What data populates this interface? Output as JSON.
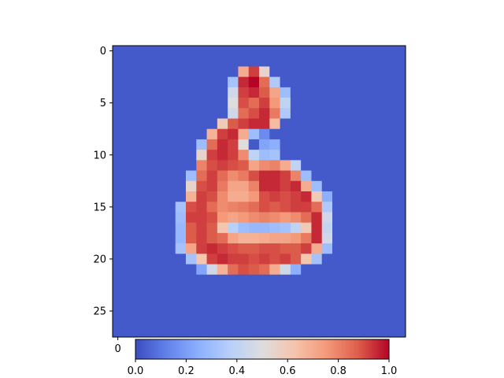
{
  "chart_data": {
    "type": "heatmap",
    "title": "",
    "xlabel": "",
    "ylabel": "",
    "colormap": "coolwarm",
    "rows": 28,
    "cols": 28,
    "x_ticks": [
      "0"
    ],
    "y_ticks": [
      "0",
      "5",
      "10",
      "15",
      "20",
      "25"
    ],
    "colorbar": {
      "orientation": "horizontal",
      "placement": "bottom",
      "range": [
        0,
        1
      ],
      "ticks": [
        "0.0",
        "0.2",
        "0.4",
        "0.6",
        "0.8",
        "1.0"
      ]
    },
    "cells": [
      {
        "r": 2,
        "c": 12,
        "v": 0.7
      },
      {
        "r": 2,
        "c": 13,
        "v": 0.92
      },
      {
        "r": 2,
        "c": 14,
        "v": 0.55
      },
      {
        "r": 3,
        "c": 11,
        "v": 0.32
      },
      {
        "r": 3,
        "c": 12,
        "v": 0.95
      },
      {
        "r": 3,
        "c": 13,
        "v": 1.0
      },
      {
        "r": 3,
        "c": 14,
        "v": 0.85
      },
      {
        "r": 3,
        "c": 15,
        "v": 0.35
      },
      {
        "r": 4,
        "c": 11,
        "v": 0.45
      },
      {
        "r": 4,
        "c": 12,
        "v": 0.92
      },
      {
        "r": 4,
        "c": 13,
        "v": 0.95
      },
      {
        "r": 4,
        "c": 14,
        "v": 0.88
      },
      {
        "r": 4,
        "c": 15,
        "v": 0.72
      },
      {
        "r": 4,
        "c": 16,
        "v": 0.3
      },
      {
        "r": 5,
        "c": 11,
        "v": 0.5
      },
      {
        "r": 5,
        "c": 12,
        "v": 0.9
      },
      {
        "r": 5,
        "c": 13,
        "v": 0.85
      },
      {
        "r": 5,
        "c": 14,
        "v": 0.92
      },
      {
        "r": 5,
        "c": 15,
        "v": 0.75
      },
      {
        "r": 5,
        "c": 16,
        "v": 0.4
      },
      {
        "r": 6,
        "c": 11,
        "v": 0.45
      },
      {
        "r": 6,
        "c": 12,
        "v": 0.85
      },
      {
        "r": 6,
        "c": 13,
        "v": 0.9
      },
      {
        "r": 6,
        "c": 14,
        "v": 0.95
      },
      {
        "r": 6,
        "c": 15,
        "v": 0.82
      },
      {
        "r": 6,
        "c": 16,
        "v": 0.35
      },
      {
        "r": 7,
        "c": 10,
        "v": 0.6
      },
      {
        "r": 7,
        "c": 11,
        "v": 0.88
      },
      {
        "r": 7,
        "c": 12,
        "v": 0.92
      },
      {
        "r": 7,
        "c": 13,
        "v": 0.95
      },
      {
        "r": 7,
        "c": 14,
        "v": 0.95
      },
      {
        "r": 7,
        "c": 15,
        "v": 0.65
      },
      {
        "r": 8,
        "c": 9,
        "v": 0.68
      },
      {
        "r": 8,
        "c": 10,
        "v": 0.92
      },
      {
        "r": 8,
        "c": 11,
        "v": 0.95
      },
      {
        "r": 8,
        "c": 12,
        "v": 0.7
      },
      {
        "r": 8,
        "c": 13,
        "v": 0.3
      },
      {
        "r": 8,
        "c": 14,
        "v": 0.15
      },
      {
        "r": 9,
        "c": 8,
        "v": 0.3
      },
      {
        "r": 9,
        "c": 9,
        "v": 0.85
      },
      {
        "r": 9,
        "c": 10,
        "v": 0.95
      },
      {
        "r": 9,
        "c": 11,
        "v": 0.92
      },
      {
        "r": 9,
        "c": 12,
        "v": 0.5
      },
      {
        "r": 9,
        "c": 14,
        "v": 0.22
      },
      {
        "r": 9,
        "c": 15,
        "v": 0.25
      },
      {
        "r": 10,
        "c": 8,
        "v": 0.55
      },
      {
        "r": 10,
        "c": 9,
        "v": 0.92
      },
      {
        "r": 10,
        "c": 10,
        "v": 0.95
      },
      {
        "r": 10,
        "c": 11,
        "v": 0.92
      },
      {
        "r": 10,
        "c": 12,
        "v": 0.78
      },
      {
        "r": 10,
        "c": 13,
        "v": 0.4
      },
      {
        "r": 10,
        "c": 14,
        "v": 0.3
      },
      {
        "r": 10,
        "c": 15,
        "v": 0.32
      },
      {
        "r": 11,
        "c": 8,
        "v": 0.8
      },
      {
        "r": 11,
        "c": 9,
        "v": 0.9
      },
      {
        "r": 11,
        "c": 10,
        "v": 0.92
      },
      {
        "r": 11,
        "c": 11,
        "v": 0.9
      },
      {
        "r": 11,
        "c": 12,
        "v": 0.88
      },
      {
        "r": 11,
        "c": 13,
        "v": 0.72
      },
      {
        "r": 11,
        "c": 14,
        "v": 0.78
      },
      {
        "r": 11,
        "c": 15,
        "v": 0.8
      },
      {
        "r": 11,
        "c": 16,
        "v": 0.7
      },
      {
        "r": 11,
        "c": 17,
        "v": 0.4
      },
      {
        "r": 12,
        "c": 7,
        "v": 0.3
      },
      {
        "r": 12,
        "c": 8,
        "v": 0.85
      },
      {
        "r": 12,
        "c": 9,
        "v": 0.92
      },
      {
        "r": 12,
        "c": 10,
        "v": 0.85
      },
      {
        "r": 12,
        "c": 11,
        "v": 0.78
      },
      {
        "r": 12,
        "c": 12,
        "v": 0.82
      },
      {
        "r": 12,
        "c": 13,
        "v": 0.9
      },
      {
        "r": 12,
        "c": 14,
        "v": 0.95
      },
      {
        "r": 12,
        "c": 15,
        "v": 0.95
      },
      {
        "r": 12,
        "c": 16,
        "v": 0.92
      },
      {
        "r": 12,
        "c": 17,
        "v": 0.8
      },
      {
        "r": 12,
        "c": 18,
        "v": 0.3
      },
      {
        "r": 13,
        "c": 7,
        "v": 0.55
      },
      {
        "r": 13,
        "c": 8,
        "v": 0.9
      },
      {
        "r": 13,
        "c": 9,
        "v": 0.92
      },
      {
        "r": 13,
        "c": 10,
        "v": 0.82
      },
      {
        "r": 13,
        "c": 11,
        "v": 0.72
      },
      {
        "r": 13,
        "c": 12,
        "v": 0.72
      },
      {
        "r": 13,
        "c": 13,
        "v": 0.8
      },
      {
        "r": 13,
        "c": 14,
        "v": 0.95
      },
      {
        "r": 13,
        "c": 15,
        "v": 0.95
      },
      {
        "r": 13,
        "c": 16,
        "v": 0.92
      },
      {
        "r": 13,
        "c": 17,
        "v": 0.95
      },
      {
        "r": 13,
        "c": 18,
        "v": 0.7
      },
      {
        "r": 13,
        "c": 19,
        "v": 0.3
      },
      {
        "r": 14,
        "c": 7,
        "v": 0.68
      },
      {
        "r": 14,
        "c": 8,
        "v": 0.92
      },
      {
        "r": 14,
        "c": 9,
        "v": 0.9
      },
      {
        "r": 14,
        "c": 10,
        "v": 0.78
      },
      {
        "r": 14,
        "c": 11,
        "v": 0.7
      },
      {
        "r": 14,
        "c": 12,
        "v": 0.7
      },
      {
        "r": 14,
        "c": 13,
        "v": 0.75
      },
      {
        "r": 14,
        "c": 14,
        "v": 0.9
      },
      {
        "r": 14,
        "c": 15,
        "v": 0.92
      },
      {
        "r": 14,
        "c": 16,
        "v": 0.9
      },
      {
        "r": 14,
        "c": 17,
        "v": 0.92
      },
      {
        "r": 14,
        "c": 18,
        "v": 0.95
      },
      {
        "r": 14,
        "c": 19,
        "v": 0.6
      },
      {
        "r": 14,
        "c": 20,
        "v": 0.25
      },
      {
        "r": 15,
        "c": 6,
        "v": 0.32
      },
      {
        "r": 15,
        "c": 7,
        "v": 0.9
      },
      {
        "r": 15,
        "c": 8,
        "v": 0.92
      },
      {
        "r": 15,
        "c": 9,
        "v": 0.85
      },
      {
        "r": 15,
        "c": 10,
        "v": 0.78
      },
      {
        "r": 15,
        "c": 11,
        "v": 0.8
      },
      {
        "r": 15,
        "c": 12,
        "v": 0.82
      },
      {
        "r": 15,
        "c": 13,
        "v": 0.85
      },
      {
        "r": 15,
        "c": 14,
        "v": 0.9
      },
      {
        "r": 15,
        "c": 15,
        "v": 0.88
      },
      {
        "r": 15,
        "c": 16,
        "v": 0.9
      },
      {
        "r": 15,
        "c": 17,
        "v": 0.92
      },
      {
        "r": 15,
        "c": 18,
        "v": 0.92
      },
      {
        "r": 15,
        "c": 19,
        "v": 0.85
      },
      {
        "r": 15,
        "c": 20,
        "v": 0.35
      },
      {
        "r": 16,
        "c": 6,
        "v": 0.3
      },
      {
        "r": 16,
        "c": 7,
        "v": 0.92
      },
      {
        "r": 16,
        "c": 8,
        "v": 0.92
      },
      {
        "r": 16,
        "c": 9,
        "v": 0.9
      },
      {
        "r": 16,
        "c": 10,
        "v": 0.75
      },
      {
        "r": 16,
        "c": 11,
        "v": 0.72
      },
      {
        "r": 16,
        "c": 12,
        "v": 0.75
      },
      {
        "r": 16,
        "c": 13,
        "v": 0.78
      },
      {
        "r": 16,
        "c": 14,
        "v": 0.8
      },
      {
        "r": 16,
        "c": 15,
        "v": 0.78
      },
      {
        "r": 16,
        "c": 16,
        "v": 0.75
      },
      {
        "r": 16,
        "c": 17,
        "v": 0.78
      },
      {
        "r": 16,
        "c": 18,
        "v": 0.85
      },
      {
        "r": 16,
        "c": 19,
        "v": 0.95
      },
      {
        "r": 16,
        "c": 20,
        "v": 0.45
      },
      {
        "r": 17,
        "c": 6,
        "v": 0.28
      },
      {
        "r": 17,
        "c": 7,
        "v": 0.88
      },
      {
        "r": 17,
        "c": 8,
        "v": 0.92
      },
      {
        "r": 17,
        "c": 9,
        "v": 0.88
      },
      {
        "r": 17,
        "c": 10,
        "v": 0.62
      },
      {
        "r": 17,
        "c": 11,
        "v": 0.38
      },
      {
        "r": 17,
        "c": 12,
        "v": 0.3
      },
      {
        "r": 17,
        "c": 13,
        "v": 0.28
      },
      {
        "r": 17,
        "c": 14,
        "v": 0.28
      },
      {
        "r": 17,
        "c": 15,
        "v": 0.3
      },
      {
        "r": 17,
        "c": 16,
        "v": 0.32
      },
      {
        "r": 17,
        "c": 17,
        "v": 0.4
      },
      {
        "r": 17,
        "c": 18,
        "v": 0.6
      },
      {
        "r": 17,
        "c": 19,
        "v": 0.95
      },
      {
        "r": 17,
        "c": 20,
        "v": 0.42
      },
      {
        "r": 18,
        "c": 6,
        "v": 0.28
      },
      {
        "r": 18,
        "c": 7,
        "v": 0.88
      },
      {
        "r": 18,
        "c": 8,
        "v": 0.92
      },
      {
        "r": 18,
        "c": 9,
        "v": 0.88
      },
      {
        "r": 18,
        "c": 10,
        "v": 0.85
      },
      {
        "r": 18,
        "c": 11,
        "v": 0.72
      },
      {
        "r": 18,
        "c": 12,
        "v": 0.68
      },
      {
        "r": 18,
        "c": 13,
        "v": 0.68
      },
      {
        "r": 18,
        "c": 14,
        "v": 0.7
      },
      {
        "r": 18,
        "c": 15,
        "v": 0.72
      },
      {
        "r": 18,
        "c": 16,
        "v": 0.72
      },
      {
        "r": 18,
        "c": 17,
        "v": 0.75
      },
      {
        "r": 18,
        "c": 18,
        "v": 0.82
      },
      {
        "r": 18,
        "c": 19,
        "v": 0.95
      },
      {
        "r": 18,
        "c": 20,
        "v": 0.45
      },
      {
        "r": 19,
        "c": 6,
        "v": 0.32
      },
      {
        "r": 19,
        "c": 7,
        "v": 0.72
      },
      {
        "r": 19,
        "c": 8,
        "v": 0.92
      },
      {
        "r": 19,
        "c": 9,
        "v": 0.95
      },
      {
        "r": 19,
        "c": 10,
        "v": 0.92
      },
      {
        "r": 19,
        "c": 11,
        "v": 0.9
      },
      {
        "r": 19,
        "c": 12,
        "v": 0.88
      },
      {
        "r": 19,
        "c": 13,
        "v": 0.88
      },
      {
        "r": 19,
        "c": 14,
        "v": 0.9
      },
      {
        "r": 19,
        "c": 15,
        "v": 0.9
      },
      {
        "r": 19,
        "c": 16,
        "v": 0.88
      },
      {
        "r": 19,
        "c": 17,
        "v": 0.88
      },
      {
        "r": 19,
        "c": 18,
        "v": 0.92
      },
      {
        "r": 19,
        "c": 19,
        "v": 0.7
      },
      {
        "r": 19,
        "c": 20,
        "v": 0.3
      },
      {
        "r": 20,
        "c": 7,
        "v": 0.32
      },
      {
        "r": 20,
        "c": 8,
        "v": 0.62
      },
      {
        "r": 20,
        "c": 9,
        "v": 0.92
      },
      {
        "r": 20,
        "c": 10,
        "v": 0.95
      },
      {
        "r": 20,
        "c": 11,
        "v": 0.92
      },
      {
        "r": 20,
        "c": 12,
        "v": 0.92
      },
      {
        "r": 20,
        "c": 13,
        "v": 0.9
      },
      {
        "r": 20,
        "c": 14,
        "v": 0.92
      },
      {
        "r": 20,
        "c": 15,
        "v": 0.9
      },
      {
        "r": 20,
        "c": 16,
        "v": 0.92
      },
      {
        "r": 20,
        "c": 17,
        "v": 0.88
      },
      {
        "r": 20,
        "c": 18,
        "v": 0.62
      },
      {
        "r": 20,
        "c": 19,
        "v": 0.32
      },
      {
        "r": 21,
        "c": 8,
        "v": 0.22
      },
      {
        "r": 21,
        "c": 9,
        "v": 0.45
      },
      {
        "r": 21,
        "c": 10,
        "v": 0.68
      },
      {
        "r": 21,
        "c": 11,
        "v": 0.85
      },
      {
        "r": 21,
        "c": 12,
        "v": 0.9
      },
      {
        "r": 21,
        "c": 13,
        "v": 0.88
      },
      {
        "r": 21,
        "c": 14,
        "v": 0.85
      },
      {
        "r": 21,
        "c": 15,
        "v": 0.7
      },
      {
        "r": 21,
        "c": 16,
        "v": 0.45
      },
      {
        "r": 21,
        "c": 17,
        "v": 0.25
      }
    ]
  }
}
